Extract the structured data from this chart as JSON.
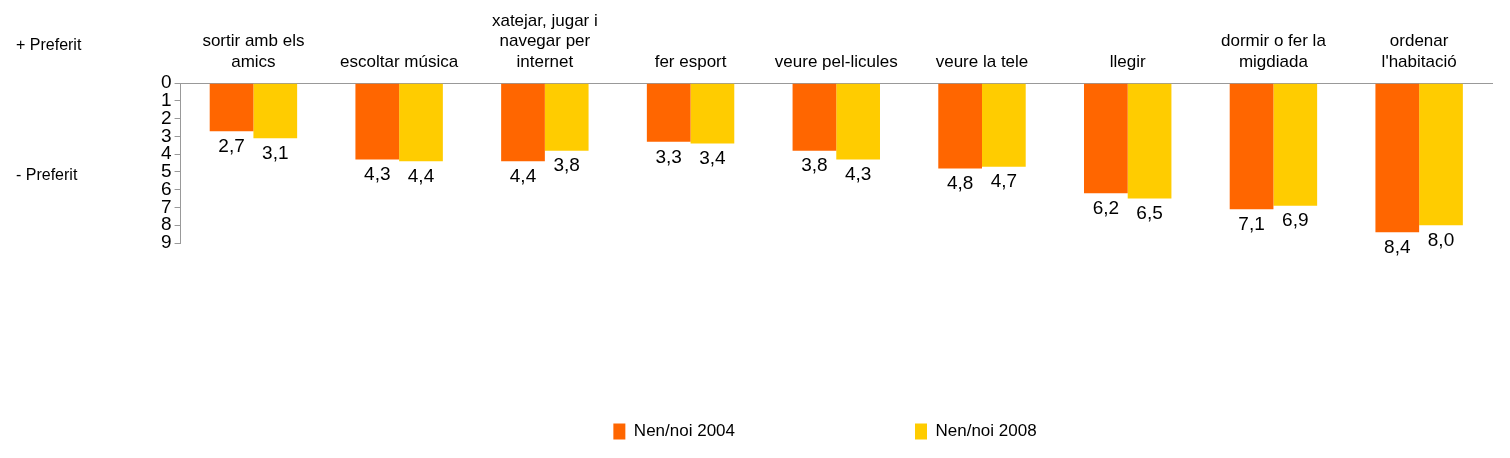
{
  "chart_data": {
    "type": "bar",
    "categories": [
      "sortir amb els amics",
      "escoltar música",
      "xatejar, jugar i navegar per internet",
      "fer esport",
      "veure pel-licules",
      "veure la tele",
      "llegir",
      "dormir o fer la migdiada",
      "ordenar l'habitació"
    ],
    "series": [
      {
        "name": "Nen/noi 2004",
        "color": "#ff6600",
        "values": [
          2.7,
          4.3,
          4.4,
          3.3,
          3.8,
          4.8,
          6.2,
          7.1,
          8.4
        ],
        "value_labels": [
          "2,7",
          "4,3",
          "4,4",
          "3,3",
          "3,8",
          "4,8",
          "6,2",
          "7,1",
          "8,4"
        ]
      },
      {
        "name": "Nen/noi 2008",
        "color": "#ffcc00",
        "values": [
          3.1,
          4.4,
          3.8,
          3.4,
          4.3,
          4.7,
          6.5,
          6.9,
          8.0
        ],
        "value_labels": [
          "3,1",
          "4,4",
          "3,8",
          "3,4",
          "4,3",
          "4,7",
          "6,5",
          "6,9",
          "8,0"
        ]
      }
    ],
    "ylim": [
      9,
      0
    ],
    "yticks": [
      0,
      1,
      2,
      3,
      4,
      5,
      6,
      7,
      8,
      9
    ],
    "grid": false,
    "legend": "bottom",
    "annotations": [
      "+ Preferit",
      "- Preferit"
    ]
  }
}
